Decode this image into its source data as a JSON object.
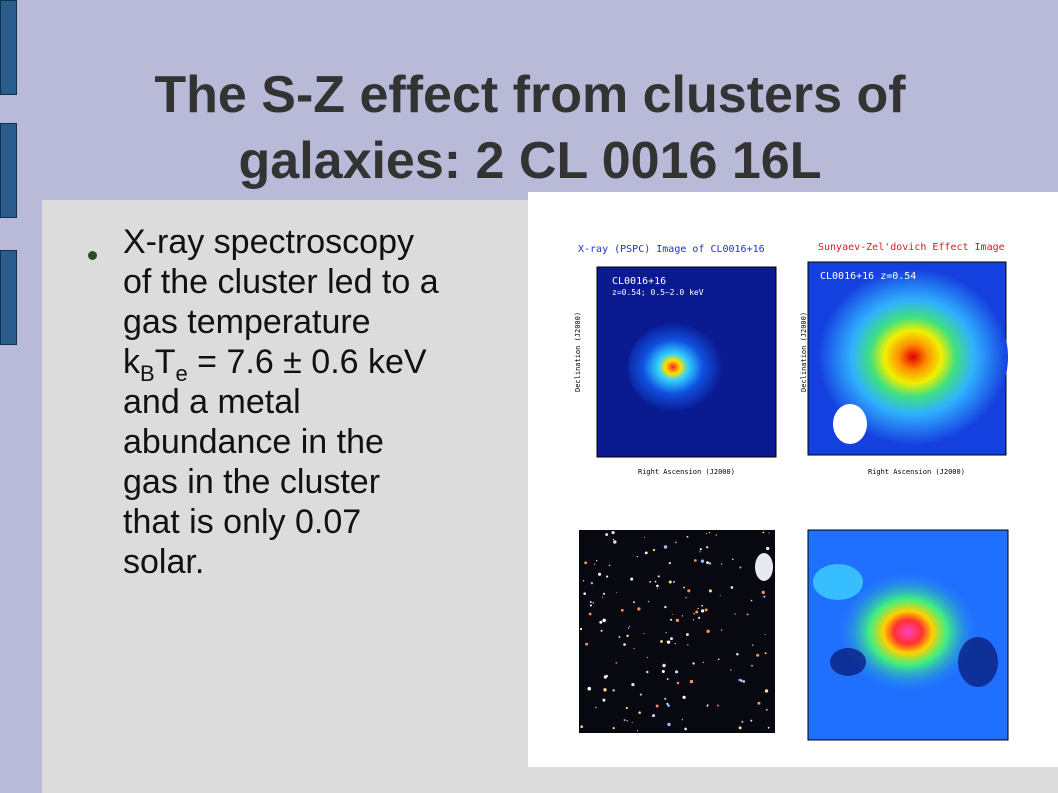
{
  "slide": {
    "title": "The S-Z effect from clusters of galaxies: 2 CL 0016 16L",
    "bullet": {
      "lines_before": [
        "X-ray spectroscopy",
        "of the cluster led to a",
        "gas temperature"
      ],
      "formula": {
        "k": "k",
        "k_sub": "B",
        "t": "T",
        "t_sub": "e",
        "rest": " = 7.6 ± 0.6 keV"
      },
      "lines_after": [
        "and a metal",
        "abundance in the",
        "gas in the cluster",
        "that is only 0.07",
        "solar."
      ]
    },
    "figure": {
      "xray_title": "X-ray (PSPC) Image of CL0016+16",
      "xray_label": "CL0016+16",
      "xray_note": "z=0.54; 0.5–2.0 keV",
      "sz_title": "Sunyaev-Zel'dovich Effect Image",
      "sz_label": "CL0016+16  z=0.54",
      "ra_label": "Right Ascension (J2000)",
      "dec_label": "Declination (J2000)"
    }
  }
}
